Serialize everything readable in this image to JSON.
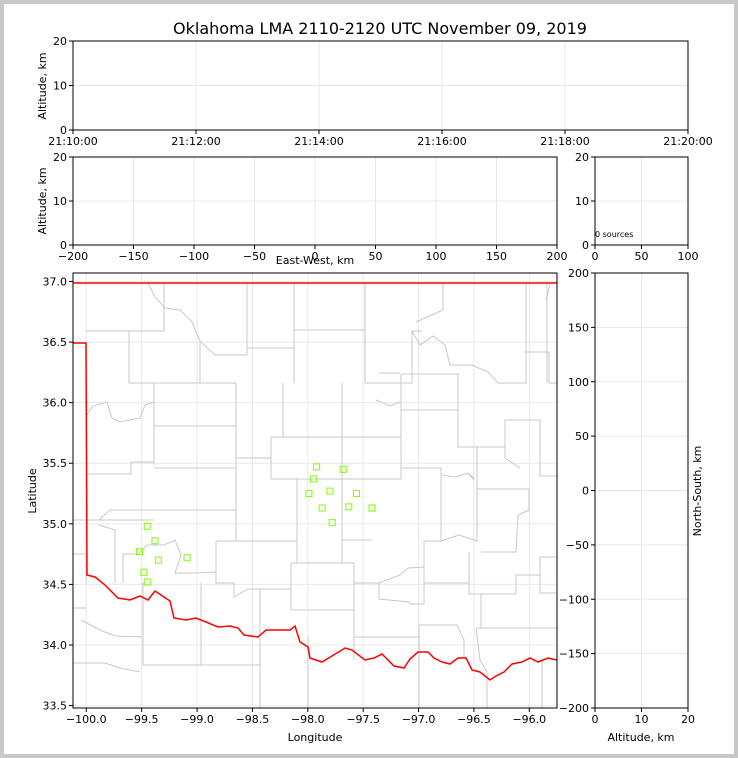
{
  "title": "Oklahoma LMA 2110-2120 UTC November 09, 2019",
  "colors": {
    "boundary": "#ff0000",
    "county": "#c8c8c8",
    "grid": "#e8e8e8",
    "source": "#7fff00"
  },
  "panels": {
    "time_height": {
      "ylabel": "Altitude, km",
      "yticks": [
        "0",
        "10",
        "20"
      ],
      "xticks": [
        "21:10:00",
        "21:12:00",
        "21:14:00",
        "21:16:00",
        "21:18:00",
        "21:20:00"
      ]
    },
    "ew_alt": {
      "ylabel": "Altitude, km",
      "xlabel": "East-West, km",
      "yticks": [
        "0",
        "10",
        "20"
      ],
      "xticks": [
        "−200",
        "−150",
        "−100",
        "−50",
        "0",
        "50",
        "100",
        "150",
        "200"
      ]
    },
    "hist": {
      "annotation": "0 sources",
      "yticks": [
        "0",
        "10",
        "20"
      ],
      "xticks": [
        "0",
        "50",
        "100"
      ]
    },
    "plan": {
      "xlabel": "Longitude",
      "ylabel": "Latitude",
      "xticks": [
        "−100.0",
        "−99.5",
        "−99.0",
        "−98.5",
        "−98.0",
        "−97.5",
        "−97.0",
        "−96.5",
        "−96.0"
      ],
      "yticks": [
        "37.0",
        "36.5",
        "36.0",
        "35.5",
        "35.0",
        "34.5",
        "34.0",
        "33.5"
      ]
    },
    "alt_ns": {
      "xlabel": "Altitude, km",
      "ylabel": "North-South, km",
      "xticks": [
        "0",
        "10",
        "20"
      ],
      "yticks": [
        "200",
        "150",
        "100",
        "50",
        "0",
        "−50",
        "−100",
        "−150",
        "−200"
      ]
    }
  },
  "chart_data": [
    {
      "type": "scatter",
      "panel": "time_height",
      "xlabel": "",
      "ylabel": "Altitude, km",
      "xlim": [
        "21:10:00",
        "21:20:00"
      ],
      "ylim": [
        0,
        20
      ],
      "grid": true,
      "series": []
    },
    {
      "type": "scatter",
      "panel": "ew_alt",
      "xlabel": "East-West, km",
      "ylabel": "Altitude, km",
      "xlim": [
        -200,
        200
      ],
      "ylim": [
        0,
        20
      ],
      "grid": true,
      "series": []
    },
    {
      "type": "bar",
      "panel": "hist",
      "annotation": "0 sources",
      "xlim": [
        0,
        100
      ],
      "ylim": [
        0,
        20
      ],
      "grid": true,
      "values": []
    },
    {
      "type": "scatter",
      "panel": "plan",
      "xlabel": "Longitude",
      "ylabel": "Latitude",
      "xlim": [
        -100.12,
        -95.75
      ],
      "ylim": [
        33.48,
        37.07
      ],
      "grid": true,
      "series": [
        {
          "points": [
            {
              "lon": -97.92,
              "lat": 35.47
            },
            {
              "lon": -97.68,
              "lat": 35.45
            },
            {
              "lon": -97.95,
              "lat": 35.37
            },
            {
              "lon": -97.8,
              "lat": 35.27
            },
            {
              "lon": -97.99,
              "lat": 35.25
            },
            {
              "lon": -97.56,
              "lat": 35.25
            },
            {
              "lon": -97.87,
              "lat": 35.13
            },
            {
              "lon": -97.63,
              "lat": 35.14
            },
            {
              "lon": -97.42,
              "lat": 35.13
            },
            {
              "lon": -97.42,
              "lat": 35.13
            },
            {
              "lon": -97.78,
              "lat": 35.01
            },
            {
              "lon": -99.45,
              "lat": 34.98
            },
            {
              "lon": -99.38,
              "lat": 34.86
            },
            {
              "lon": -99.52,
              "lat": 34.77
            },
            {
              "lon": -99.09,
              "lat": 34.72
            },
            {
              "lon": -99.35,
              "lat": 34.7
            },
            {
              "lon": -99.48,
              "lat": 34.6
            },
            {
              "lon": -99.45,
              "lat": 34.52
            }
          ]
        }
      ]
    },
    {
      "type": "scatter",
      "panel": "alt_ns",
      "xlabel": "Altitude, km",
      "ylabel": "North-South, km",
      "xlim": [
        0,
        20
      ],
      "ylim": [
        -200,
        200
      ],
      "grid": true,
      "series": []
    }
  ]
}
